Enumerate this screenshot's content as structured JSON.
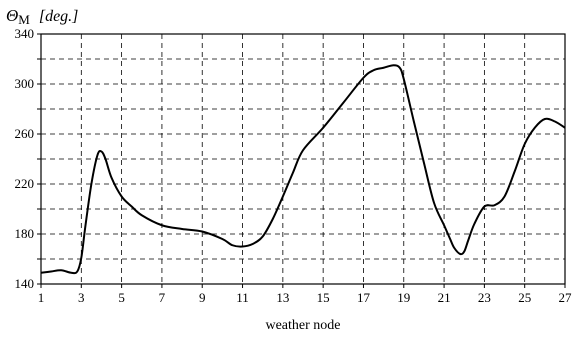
{
  "chart_data": {
    "type": "line",
    "ylabel": {
      "symbol": "Θ",
      "subscript": "M",
      "unit": "[deg.]"
    },
    "xlabel": "weather node",
    "xlim": [
      1,
      27
    ],
    "ylim": [
      140,
      340
    ],
    "x_ticks": [
      "1",
      "3",
      "5",
      "7",
      "9",
      "11",
      "13",
      "15",
      "17",
      "19",
      "21",
      "23",
      "25",
      "27"
    ],
    "y_ticks": [
      "140",
      "180",
      "220",
      "260",
      "300",
      "340"
    ],
    "x_grid": [
      1,
      3,
      5,
      7,
      9,
      11,
      13,
      15,
      17,
      19,
      21,
      23,
      25,
      27
    ],
    "y_grid": [
      140,
      160,
      180,
      200,
      220,
      240,
      260,
      280,
      300,
      320,
      340
    ],
    "grid": true,
    "series": [
      {
        "color": "#000000",
        "x": [
          1,
          1.5,
          2,
          2.5,
          2.8,
          3,
          3.2,
          3.5,
          3.8,
          4,
          4.2,
          4.5,
          5,
          5.5,
          6,
          7,
          8,
          9,
          10,
          10.5,
          11,
          11.5,
          12,
          12.5,
          13,
          13.5,
          14,
          15,
          16,
          17,
          17.5,
          18,
          18.5,
          18.8,
          19,
          19.5,
          20,
          20.5,
          21,
          21.3,
          21.5,
          21.8,
          22,
          22.2,
          22.5,
          23,
          23.5,
          24,
          24.5,
          25,
          25.5,
          26,
          26.5,
          27
        ],
        "values": [
          149,
          150,
          151,
          149,
          150,
          161,
          186,
          220,
          243,
          246,
          240,
          225,
          210,
          202,
          195,
          187,
          184,
          182,
          176,
          171,
          170,
          172,
          178,
          192,
          210,
          229,
          247,
          265,
          285,
          305,
          311,
          313,
          315,
          313,
          304,
          270,
          237,
          205,
          187,
          176,
          169,
          164,
          166,
          175,
          188,
          202,
          203,
          210,
          230,
          252,
          265,
          272,
          270,
          265
        ]
      }
    ]
  }
}
